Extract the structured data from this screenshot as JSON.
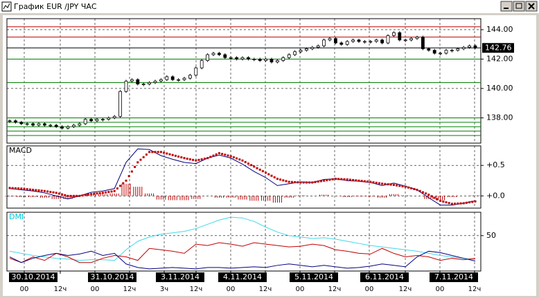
{
  "window": {
    "title": "График EUR /JPY ЧАС"
  },
  "chart_data": [
    {
      "type": "candlestick",
      "color": "#000000",
      "ylim": [
        136.28,
        144.75
      ],
      "yticks": [
        {
          "value": 138,
          "label": "138.00"
        },
        {
          "value": 140,
          "label": "140.00"
        },
        {
          "value": 142,
          "label": "142.00"
        },
        {
          "value": 144,
          "label": "144.00"
        }
      ],
      "grid": true,
      "last_price": 142.76,
      "levels": [
        {
          "value": 144.2,
          "color": "#c00000"
        },
        {
          "value": 143.5,
          "color": "#c00000"
        },
        {
          "value": 142.0,
          "color": "#008000"
        },
        {
          "value": 140.4,
          "color": "#008000"
        },
        {
          "value": 138.0,
          "color": "#008000"
        },
        {
          "value": 137.7,
          "color": "#008000"
        },
        {
          "value": 137.4,
          "color": "#008000"
        },
        {
          "value": 137.1,
          "color": "#008000"
        },
        {
          "value": 136.8,
          "color": "#008000"
        }
      ],
      "values": [
        137.8,
        137.7,
        137.6,
        137.6,
        137.5,
        137.6,
        137.5,
        137.5,
        137.4,
        137.3,
        137.4,
        137.5,
        137.6,
        137.9,
        137.8,
        137.9,
        137.9,
        138.0,
        138.1,
        139.8,
        140.5,
        140.6,
        140.3,
        140.3,
        140.4,
        140.5,
        140.6,
        140.8,
        140.6,
        140.6,
        140.7,
        140.9,
        141.4,
        141.9,
        142.3,
        142.4,
        142.3,
        142.1,
        142.1,
        142.0,
        142.1,
        142.0,
        142.0,
        141.9,
        142.0,
        141.8,
        141.9,
        142.1,
        142.3,
        142.5,
        142.6,
        142.7,
        142.8,
        142.9,
        143.3,
        143.4,
        143.1,
        143.0,
        143.2,
        143.3,
        143.2,
        143.2,
        143.2,
        143.3,
        143.1,
        143.6,
        143.8,
        143.3,
        143.3,
        143.4,
        143.5,
        142.7,
        142.6,
        142.4,
        142.4,
        142.6,
        142.6,
        142.7,
        142.8,
        142.9,
        142.76
      ]
    },
    {
      "type": "line",
      "title": "MACD",
      "title_color": "#000000",
      "ylim": [
        -0.2,
        0.82
      ],
      "yticks": [
        {
          "value": 0.5,
          "label": "+0.5"
        },
        {
          "value": 0,
          "label": "+0.0"
        }
      ],
      "grid": true,
      "histogram": {
        "color": "#c00000",
        "values": [
          -0.01,
          -0.02,
          -0.02,
          -0.03,
          -0.05,
          -0.05,
          0.0,
          0.03,
          0.03,
          0.04,
          0.2,
          0.15,
          0.04,
          -0.06,
          -0.07,
          -0.07,
          -0.05,
          0.0,
          -0.03,
          -0.03,
          -0.06,
          -0.08,
          -0.08,
          -0.11,
          -0.03,
          0.01,
          0.0,
          0.02,
          0.0,
          -0.02,
          -0.01,
          -0.01,
          -0.03,
          0.03,
          0.01,
          0.0,
          -0.05,
          -0.07,
          -0.02,
          0.0,
          0.01
        ]
      },
      "series": [
        {
          "color": "#000080",
          "values": [
            0.12,
            0.1,
            0.08,
            0.05,
            0.0,
            -0.05,
            0.0,
            0.06,
            0.08,
            0.12,
            0.55,
            0.77,
            0.76,
            0.66,
            0.6,
            0.55,
            0.53,
            0.62,
            0.67,
            0.62,
            0.52,
            0.4,
            0.3,
            0.17,
            0.2,
            0.23,
            0.22,
            0.27,
            0.28,
            0.25,
            0.24,
            0.22,
            0.17,
            0.21,
            0.16,
            0.1,
            -0.03,
            -0.15,
            -0.15,
            -0.12,
            -0.08
          ]
        },
        {
          "color": "#c00000",
          "markers": true,
          "values": [
            0.13,
            0.12,
            0.1,
            0.08,
            0.05,
            0.0,
            0.0,
            0.03,
            0.05,
            0.08,
            0.25,
            0.55,
            0.72,
            0.72,
            0.67,
            0.62,
            0.58,
            0.62,
            0.7,
            0.65,
            0.58,
            0.48,
            0.38,
            0.28,
            0.23,
            0.22,
            0.22,
            0.25,
            0.28,
            0.27,
            0.25,
            0.23,
            0.2,
            0.18,
            0.15,
            0.1,
            0.02,
            -0.08,
            -0.13,
            -0.12,
            -0.09
          ]
        }
      ]
    },
    {
      "type": "line",
      "title": "DMI",
      "title_color": "#00c8d8",
      "ylim": [
        0,
        83
      ],
      "yticks": [
        50
      ],
      "grid": true,
      "series": [
        {
          "color": "#40d8e8",
          "values": [
            28,
            25,
            22,
            20,
            18,
            17,
            15,
            16,
            16,
            15,
            30,
            42,
            48,
            52,
            54,
            56,
            60,
            66,
            72,
            76,
            75,
            70,
            62,
            55,
            50,
            48,
            46,
            47,
            45,
            42,
            39,
            36,
            34,
            32,
            30,
            28,
            25,
            22,
            20,
            18,
            16
          ]
        },
        {
          "color": "#c00000",
          "values": [
            18,
            12,
            20,
            15,
            25,
            20,
            12,
            12,
            18,
            22,
            20,
            15,
            32,
            30,
            28,
            25,
            38,
            36,
            40,
            38,
            35,
            40,
            38,
            36,
            34,
            35,
            38,
            36,
            30,
            28,
            25,
            24,
            32,
            25,
            20,
            22,
            20,
            15,
            18,
            16,
            18
          ]
        },
        {
          "color": "#000080",
          "values": [
            20,
            12,
            18,
            22,
            25,
            22,
            24,
            28,
            22,
            25,
            10,
            5,
            3,
            4,
            5,
            4,
            3,
            5,
            5,
            4,
            5,
            6,
            5,
            8,
            10,
            8,
            6,
            8,
            6,
            4,
            5,
            7,
            10,
            8,
            6,
            20,
            28,
            26,
            22,
            18,
            14
          ]
        }
      ]
    }
  ],
  "date_labels": [
    "30.10.2014",
    "31.10.2014",
    "3.11.2014",
    "4.11.2014",
    "5.11.2014",
    "6.11.2014",
    "7.11.2014"
  ],
  "time_labels": [
    "00",
    "12ч",
    "00",
    "12ч",
    "3ч",
    "12ч",
    "00",
    "12ч",
    "00",
    "12ч",
    "00",
    "12ч",
    "00",
    "12ч"
  ]
}
